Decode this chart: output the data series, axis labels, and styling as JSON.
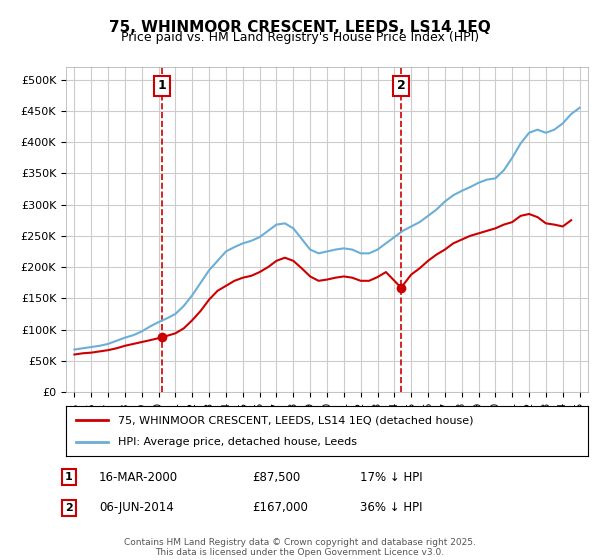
{
  "title": "75, WHINMOOR CRESCENT, LEEDS, LS14 1EQ",
  "subtitle": "Price paid vs. HM Land Registry's House Price Index (HPI)",
  "legend_label_red": "75, WHINMOOR CRESCENT, LEEDS, LS14 1EQ (detached house)",
  "legend_label_blue": "HPI: Average price, detached house, Leeds",
  "footer": "Contains HM Land Registry data © Crown copyright and database right 2025.\nThis data is licensed under the Open Government Licence v3.0.",
  "annotation1": {
    "label": "1",
    "date": "16-MAR-2000",
    "price": "£87,500",
    "hpi": "17% ↓ HPI",
    "x": 2000.2
  },
  "annotation2": {
    "label": "2",
    "date": "06-JUN-2014",
    "price": "£167,000",
    "hpi": "36% ↓ HPI",
    "x": 2014.4
  },
  "hpi_color": "#6baed6",
  "property_color": "#cc0000",
  "background_color": "#ffffff",
  "grid_color": "#cccccc",
  "ylim": [
    0,
    520000
  ],
  "yticks": [
    0,
    50000,
    100000,
    150000,
    200000,
    250000,
    300000,
    350000,
    400000,
    450000,
    500000
  ],
  "ytick_labels": [
    "£0",
    "£50K",
    "£100K",
    "£150K",
    "£200K",
    "£250K",
    "£300K",
    "£350K",
    "£400K",
    "£450K",
    "£500K"
  ],
  "xlim": [
    1994.5,
    2025.5
  ],
  "xticks": [
    1995,
    1996,
    1997,
    1998,
    1999,
    2000,
    2001,
    2002,
    2003,
    2004,
    2005,
    2006,
    2007,
    2008,
    2009,
    2010,
    2011,
    2012,
    2013,
    2014,
    2015,
    2016,
    2017,
    2018,
    2019,
    2020,
    2021,
    2022,
    2023,
    2024,
    2025
  ],
  "hpi_data": {
    "years": [
      1995,
      1995.5,
      1996,
      1996.5,
      1997,
      1997.5,
      1998,
      1998.5,
      1999,
      1999.5,
      2000,
      2000.5,
      2001,
      2001.5,
      2002,
      2002.5,
      2003,
      2003.5,
      2004,
      2004.5,
      2005,
      2005.5,
      2006,
      2006.5,
      2007,
      2007.5,
      2008,
      2008.5,
      2009,
      2009.5,
      2010,
      2010.5,
      2011,
      2011.5,
      2012,
      2012.5,
      2013,
      2013.5,
      2014,
      2014.5,
      2015,
      2015.5,
      2016,
      2016.5,
      2017,
      2017.5,
      2018,
      2018.5,
      2019,
      2019.5,
      2020,
      2020.5,
      2021,
      2021.5,
      2022,
      2022.5,
      2023,
      2023.5,
      2024,
      2024.5,
      2025
    ],
    "values": [
      68000,
      70000,
      72000,
      74000,
      77000,
      82000,
      87000,
      91000,
      97000,
      105000,
      112000,
      118000,
      125000,
      138000,
      155000,
      175000,
      195000,
      210000,
      225000,
      232000,
      238000,
      242000,
      248000,
      258000,
      268000,
      270000,
      262000,
      245000,
      228000,
      222000,
      225000,
      228000,
      230000,
      228000,
      222000,
      222000,
      228000,
      238000,
      248000,
      258000,
      265000,
      272000,
      282000,
      292000,
      305000,
      315000,
      322000,
      328000,
      335000,
      340000,
      342000,
      355000,
      375000,
      398000,
      415000,
      420000,
      415000,
      420000,
      430000,
      445000,
      455000
    ]
  },
  "property_data": {
    "years": [
      1995,
      1995.5,
      1996,
      1996.5,
      1997,
      1997.5,
      1998,
      1998.5,
      1999,
      1999.5,
      2000.2,
      2001,
      2001.5,
      2002,
      2002.5,
      2003,
      2003.5,
      2004,
      2004.5,
      2005,
      2005.5,
      2006,
      2006.5,
      2007,
      2007.5,
      2008,
      2008.5,
      2009,
      2009.5,
      2010,
      2010.5,
      2011,
      2011.5,
      2012,
      2012.5,
      2013,
      2013.5,
      2014.4,
      2015,
      2015.5,
      2016,
      2016.5,
      2017,
      2017.5,
      2018,
      2018.5,
      2019,
      2019.5,
      2020,
      2020.5,
      2021,
      2021.5,
      2022,
      2022.5,
      2023,
      2023.5,
      2024,
      2024.5
    ],
    "values": [
      60000,
      62000,
      63000,
      65000,
      67000,
      70000,
      74000,
      77000,
      80000,
      83000,
      87500,
      94000,
      102000,
      115000,
      130000,
      148000,
      162000,
      170000,
      178000,
      183000,
      186000,
      192000,
      200000,
      210000,
      215000,
      210000,
      198000,
      185000,
      178000,
      180000,
      183000,
      185000,
      183000,
      178000,
      178000,
      184000,
      192000,
      167000,
      188000,
      198000,
      210000,
      220000,
      228000,
      238000,
      244000,
      250000,
      254000,
      258000,
      262000,
      268000,
      272000,
      282000,
      285000,
      280000,
      270000,
      268000,
      265000,
      275000
    ]
  },
  "vline1_x": 2000.2,
  "vline2_x": 2014.4,
  "marker1_x": 2000.2,
  "marker1_y": 87500,
  "marker2_x": 2014.4,
  "marker2_y": 167000
}
